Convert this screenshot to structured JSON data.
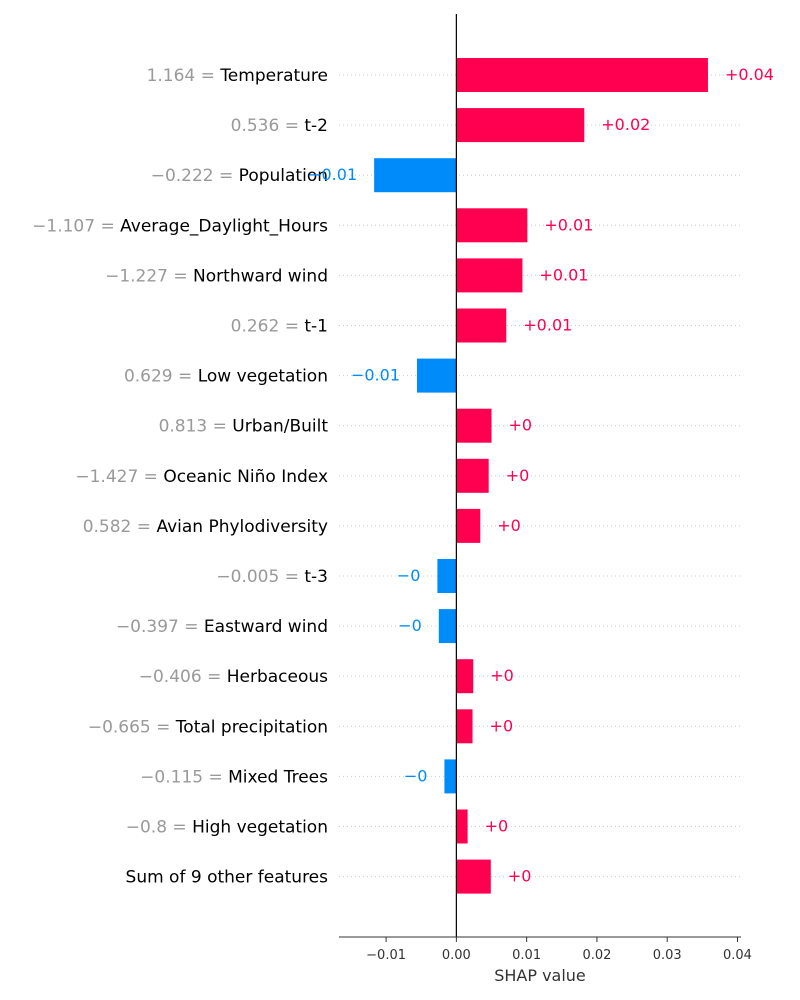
{
  "chart_data": {
    "type": "bar",
    "orientation": "horizontal",
    "xlabel": "SHAP value",
    "xlim": [
      -0.0167,
      0.0405
    ],
    "xticks": [
      -0.01,
      0.0,
      0.01,
      0.02,
      0.03,
      0.04
    ],
    "xtick_labels": [
      "−0.01",
      "0.00",
      "0.01",
      "0.02",
      "0.03",
      "0.04"
    ],
    "grid": "horizontal dotted",
    "colors": {
      "positive": "#ff0051",
      "negative": "#008bfb"
    },
    "features": [
      {
        "value_label": "1.164",
        "name": "Temperature",
        "shap": 0.0358,
        "label": "+0.04"
      },
      {
        "value_label": "0.536",
        "name": "t-2",
        "shap": 0.0182,
        "label": "+0.02"
      },
      {
        "value_label": "−0.222",
        "name": "Population",
        "shap": -0.0117,
        "label": "−0.01"
      },
      {
        "value_label": "−1.107",
        "name": "Average_Daylight_Hours",
        "shap": 0.0101,
        "label": "+0.01"
      },
      {
        "value_label": "−1.227",
        "name": "Northward wind",
        "shap": 0.0094,
        "label": "+0.01"
      },
      {
        "value_label": "0.262",
        "name": "t-1",
        "shap": 0.0071,
        "label": "+0.01"
      },
      {
        "value_label": "0.629",
        "name": "Low vegetation",
        "shap": -0.0056,
        "label": "−0.01"
      },
      {
        "value_label": "0.813",
        "name": "Urban/Built",
        "shap": 0.005,
        "label": "+0"
      },
      {
        "value_label": "−1.427",
        "name": "Oceanic Niño Index",
        "shap": 0.0046,
        "label": "+0"
      },
      {
        "value_label": "0.582",
        "name": "Avian Phylodiversity",
        "shap": 0.0034,
        "label": "+0"
      },
      {
        "value_label": "−0.005",
        "name": "t-3",
        "shap": -0.0027,
        "label": "−0"
      },
      {
        "value_label": "−0.397",
        "name": "Eastward wind",
        "shap": -0.0025,
        "label": "−0"
      },
      {
        "value_label": "−0.406",
        "name": "Herbaceous",
        "shap": 0.0024,
        "label": "+0"
      },
      {
        "value_label": "−0.665",
        "name": "Total precipitation",
        "shap": 0.0023,
        "label": "+0"
      },
      {
        "value_label": "−0.115",
        "name": "Mixed Trees",
        "shap": -0.0017,
        "label": "−0"
      },
      {
        "value_label": "−0.8",
        "name": "High vegetation",
        "shap": 0.0016,
        "label": "+0"
      },
      {
        "value_label": "",
        "name": "Sum of 9 other features",
        "shap": 0.0049,
        "label": "+0"
      }
    ]
  }
}
